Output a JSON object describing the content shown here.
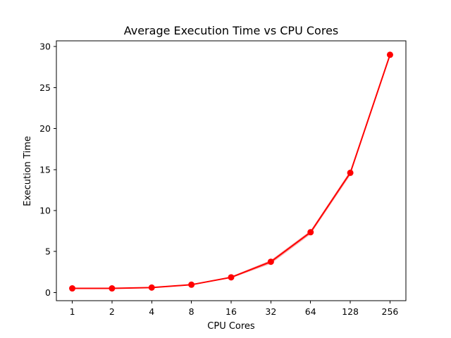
{
  "chart_data": {
    "type": "line",
    "title": "Average Execution Time vs CPU Cores",
    "xlabel": "CPU Cores",
    "ylabel": "Execution Time",
    "categories": [
      "1",
      "2",
      "4",
      "8",
      "16",
      "32",
      "64",
      "128",
      "256"
    ],
    "series": [
      {
        "values": [
          0.5,
          0.5,
          0.6,
          0.95,
          1.85,
          3.75,
          7.35,
          14.6,
          29.0
        ],
        "ci_lower": [
          0.45,
          0.45,
          0.55,
          0.9,
          1.75,
          3.5,
          7.1,
          14.3,
          28.9
        ],
        "ci_upper": [
          0.55,
          0.55,
          0.65,
          1.0,
          1.95,
          3.95,
          7.55,
          14.85,
          29.1
        ],
        "color": "#ff0000",
        "band_color": "#f08080",
        "marker": "circle"
      }
    ],
    "ylim": [
      -1.0,
      30.7
    ],
    "yticks": [
      0,
      5,
      10,
      15,
      20,
      25,
      30
    ],
    "grid": false,
    "legend": "none"
  }
}
